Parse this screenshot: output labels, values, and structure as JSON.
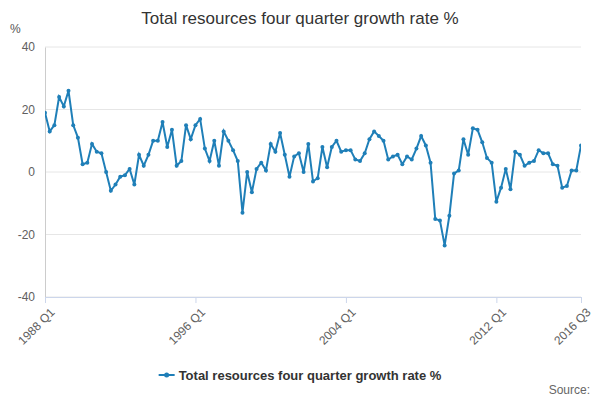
{
  "chart_data": {
    "type": "line",
    "title": "Total resources four quarter growth rate %",
    "y_label": "%",
    "source": "Source:",
    "categories": [
      "1988 Q1",
      null,
      null,
      null,
      null,
      null,
      null,
      null,
      null,
      null,
      null,
      null,
      null,
      null,
      null,
      null,
      null,
      null,
      null,
      null,
      null,
      null,
      null,
      null,
      null,
      null,
      null,
      null,
      null,
      null,
      null,
      null,
      "1996 Q1",
      null,
      null,
      null,
      null,
      null,
      null,
      null,
      null,
      null,
      null,
      null,
      null,
      null,
      null,
      null,
      null,
      null,
      null,
      null,
      null,
      null,
      null,
      null,
      null,
      null,
      null,
      null,
      null,
      null,
      null,
      null,
      "2004 Q1",
      null,
      null,
      null,
      null,
      null,
      null,
      null,
      null,
      null,
      null,
      null,
      null,
      null,
      null,
      null,
      null,
      null,
      null,
      null,
      null,
      null,
      null,
      null,
      null,
      null,
      null,
      null,
      null,
      null,
      null,
      null,
      "2012 Q1",
      null,
      null,
      null,
      null,
      null,
      null,
      null,
      null,
      null,
      null,
      null,
      null,
      null,
      null,
      null,
      null,
      null,
      "2016 Q3"
    ],
    "series": [
      {
        "name": "Total resources four quarter growth rate %",
        "color": "#1f7fb8",
        "marker": "circle",
        "values": [
          19,
          13,
          15,
          24,
          21,
          26,
          15,
          11,
          2.5,
          3,
          9,
          6.5,
          6,
          0,
          -6,
          -4,
          -1.5,
          -1,
          1,
          -4,
          5.5,
          2,
          5.5,
          10,
          10,
          16,
          8,
          13.5,
          2,
          3.5,
          15,
          10.5,
          15,
          17,
          7.5,
          3.5,
          10,
          2,
          13,
          10,
          7,
          3.5,
          -13,
          0,
          -6.5,
          1,
          3,
          0.5,
          9,
          6.5,
          12.5,
          5.5,
          -1.5,
          5,
          6,
          0,
          9,
          -3,
          -2,
          8,
          1.5,
          8,
          10,
          6.5,
          7,
          7,
          4,
          3.5,
          6,
          10.5,
          13,
          11.5,
          10,
          4,
          5,
          5.5,
          2.5,
          5,
          4,
          7.5,
          11.5,
          8.5,
          3,
          -15,
          -15.5,
          -23.5,
          -14,
          -0.5,
          0.5,
          10.5,
          5.5,
          14,
          13.5,
          9.5,
          4.5,
          3,
          -9.5,
          -5,
          1,
          -5.5,
          6.5,
          5.5,
          2,
          3,
          3.5,
          7,
          6,
          6,
          2.5,
          2,
          -5,
          -4.5,
          0.5,
          0.5,
          8.5
        ]
      }
    ],
    "ylim": [
      -40,
      40
    ],
    "yticks": [
      -40,
      -20,
      0,
      20,
      40
    ],
    "grid": true,
    "legend": "bottom"
  }
}
